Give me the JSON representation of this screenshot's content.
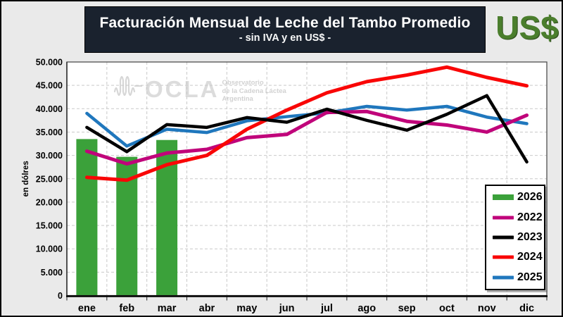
{
  "header": {
    "title": "Facturación Mensual de Leche del Tambo Promedio",
    "subtitle": "- sin IVA y en US$ -",
    "currency_badge": "US$"
  },
  "watermark": {
    "logo": "OCLA",
    "lines": [
      "Observatorio",
      "de la Cadena Láctea",
      "Argentina"
    ]
  },
  "colors": {
    "title_bg": "#1a222e",
    "badge_green": "#4b7e2d",
    "bar_green": "#3ba13a",
    "magenta_2022": "#c0047a",
    "black_2023": "#000000",
    "red_2024": "#f90606",
    "blue_2025": "#1f77bd",
    "grid": "#c9c9c9"
  },
  "chart_data": {
    "type": "combo bar+line",
    "title": "Facturación Mensual de Leche del Tambo Promedio - sin IVA y en US$ -",
    "xlabel": "",
    "ylabel": "en dólres",
    "ylim": [
      0,
      50000
    ],
    "ytick_step": 5000,
    "ytick_labels": [
      "0",
      "5.000",
      "10.000",
      "15.000",
      "20.000",
      "25.000",
      "30.000",
      "35.000",
      "40.000",
      "45.000",
      "50.000"
    ],
    "grid": "dashed both axes",
    "legend_position": "right inside plot",
    "categories": [
      "ene",
      "feb",
      "mar",
      "abr",
      "may",
      "jun",
      "jul",
      "ago",
      "sep",
      "oct",
      "nov",
      "dic"
    ],
    "series": [
      {
        "name": "2026",
        "type": "bar",
        "color": "#3ba13a",
        "values": [
          33500,
          29700,
          33300,
          null,
          null,
          null,
          null,
          null,
          null,
          null,
          null,
          null
        ]
      },
      {
        "name": "2022",
        "type": "line",
        "color": "#c0047a",
        "values": [
          30900,
          28200,
          30500,
          31300,
          33800,
          34500,
          39200,
          39400,
          37300,
          36500,
          35000,
          38600
        ]
      },
      {
        "name": "2023",
        "type": "line",
        "color": "#000000",
        "values": [
          36000,
          30800,
          36600,
          36000,
          38100,
          37100,
          39900,
          37500,
          35400,
          38800,
          42800,
          28600
        ]
      },
      {
        "name": "2024",
        "type": "line",
        "color": "#f90606",
        "values": [
          25300,
          24700,
          28000,
          30000,
          35600,
          39700,
          43400,
          45800,
          47200,
          48900,
          46700,
          44900
        ]
      },
      {
        "name": "2025",
        "type": "line",
        "color": "#1f77bd",
        "values": [
          39000,
          32000,
          35600,
          34900,
          37400,
          38300,
          39100,
          40500,
          39700,
          40500,
          38200,
          36800
        ]
      }
    ]
  }
}
